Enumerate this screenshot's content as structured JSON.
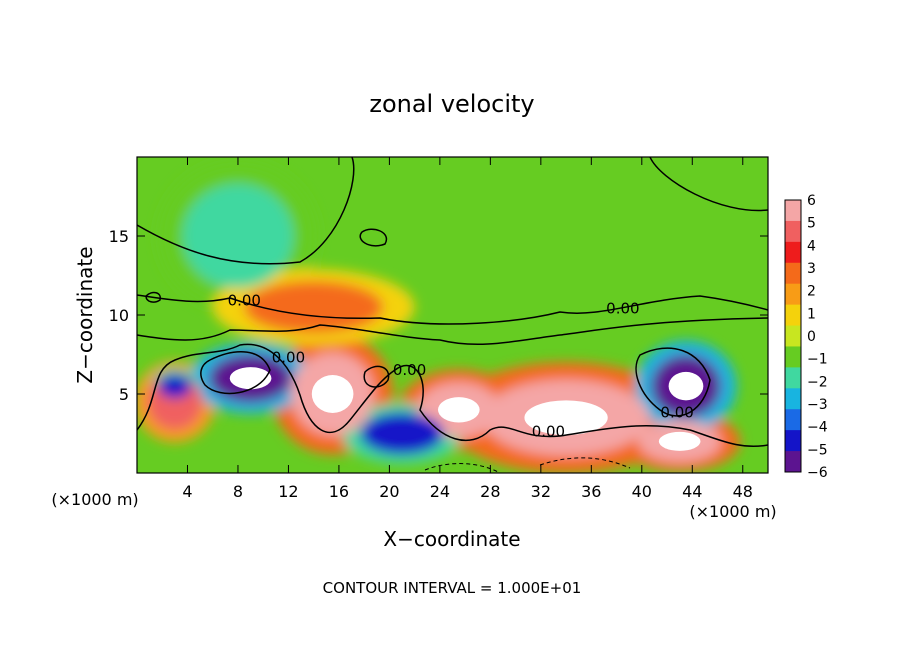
{
  "chart_data": {
    "type": "heatmap",
    "title": "zonal velocity",
    "xlabel": "X−coordinate",
    "ylabel": "Z−coordinate",
    "x_unit": "(×1000 m)",
    "x_unit_right": "(×1000 m)",
    "footer": "CONTOUR INTERVAL = 1.000E+01",
    "x_ticks": [
      "4",
      "8",
      "12",
      "16",
      "20",
      "24",
      "28",
      "32",
      "36",
      "40",
      "44",
      "48"
    ],
    "y_ticks": [
      "5",
      "10",
      "15"
    ],
    "xlim": [
      0,
      50
    ],
    "ylim": [
      0,
      20
    ],
    "colorbar": {
      "ticks": [
        "6",
        "5",
        "4",
        "3",
        "2",
        "1",
        "0",
        "−1",
        "−2",
        "−3",
        "−4",
        "−5",
        "−6"
      ],
      "colors": [
        "#f4a6a6",
        "#f06060",
        "#ee1c1c",
        "#f46a1a",
        "#f89c16",
        "#f4d20c",
        "#c8e620",
        "#66cc22",
        "#40d8a0",
        "#18b4e0",
        "#1a6ae6",
        "#1414c8",
        "#5c1490"
      ]
    },
    "contour_labels": [
      {
        "text": "0.00",
        "x": 8.5,
        "z": 10.6
      },
      {
        "text": "0.00",
        "x": 12.0,
        "z": 7.0
      },
      {
        "text": "0.00",
        "x": 21.6,
        "z": 6.2
      },
      {
        "text": "0.00",
        "x": 38.5,
        "z": 10.1
      },
      {
        "text": "0.00",
        "x": 42.8,
        "z": 3.5
      },
      {
        "text": "0.00",
        "x": 32.6,
        "z": 2.3
      }
    ],
    "features": [
      {
        "name": "red jet",
        "x": 34,
        "z": 3.5,
        "value": 6,
        "rx": 6,
        "rz": 2.2
      },
      {
        "name": "red jet",
        "x": 43,
        "z": 2.0,
        "value": 6,
        "rx": 3,
        "rz": 1.2
      },
      {
        "name": "red jet",
        "x": 15.5,
        "z": 5.0,
        "value": 6,
        "rx": 3,
        "rz": 2.4
      },
      {
        "name": "red jet",
        "x": 25.5,
        "z": 4.0,
        "value": 6,
        "rx": 3,
        "rz": 1.6
      },
      {
        "name": "red jet",
        "x": 3.0,
        "z": 4.5,
        "value": 5,
        "rx": 2,
        "rz": 1.6
      },
      {
        "name": "blue jet",
        "x": 9.0,
        "z": 6.0,
        "value": -6,
        "rx": 3,
        "rz": 1.4
      },
      {
        "name": "blue jet",
        "x": 43.5,
        "z": 5.5,
        "value": -6,
        "rx": 2.5,
        "rz": 1.8
      },
      {
        "name": "blue jet",
        "x": 21,
        "z": 2.5,
        "value": -5,
        "rx": 3,
        "rz": 1.2
      },
      {
        "name": "blue jet",
        "x": 3.0,
        "z": 5.5,
        "value": -5,
        "rx": 1.2,
        "rz": 0.7
      },
      {
        "name": "cyan",
        "x": 8,
        "z": 15,
        "value": -2,
        "rx": 4,
        "rz": 3
      },
      {
        "name": "orange band",
        "x": 14,
        "z": 10.5,
        "value": 3,
        "rx": 5,
        "rz": 1.5
      }
    ]
  }
}
